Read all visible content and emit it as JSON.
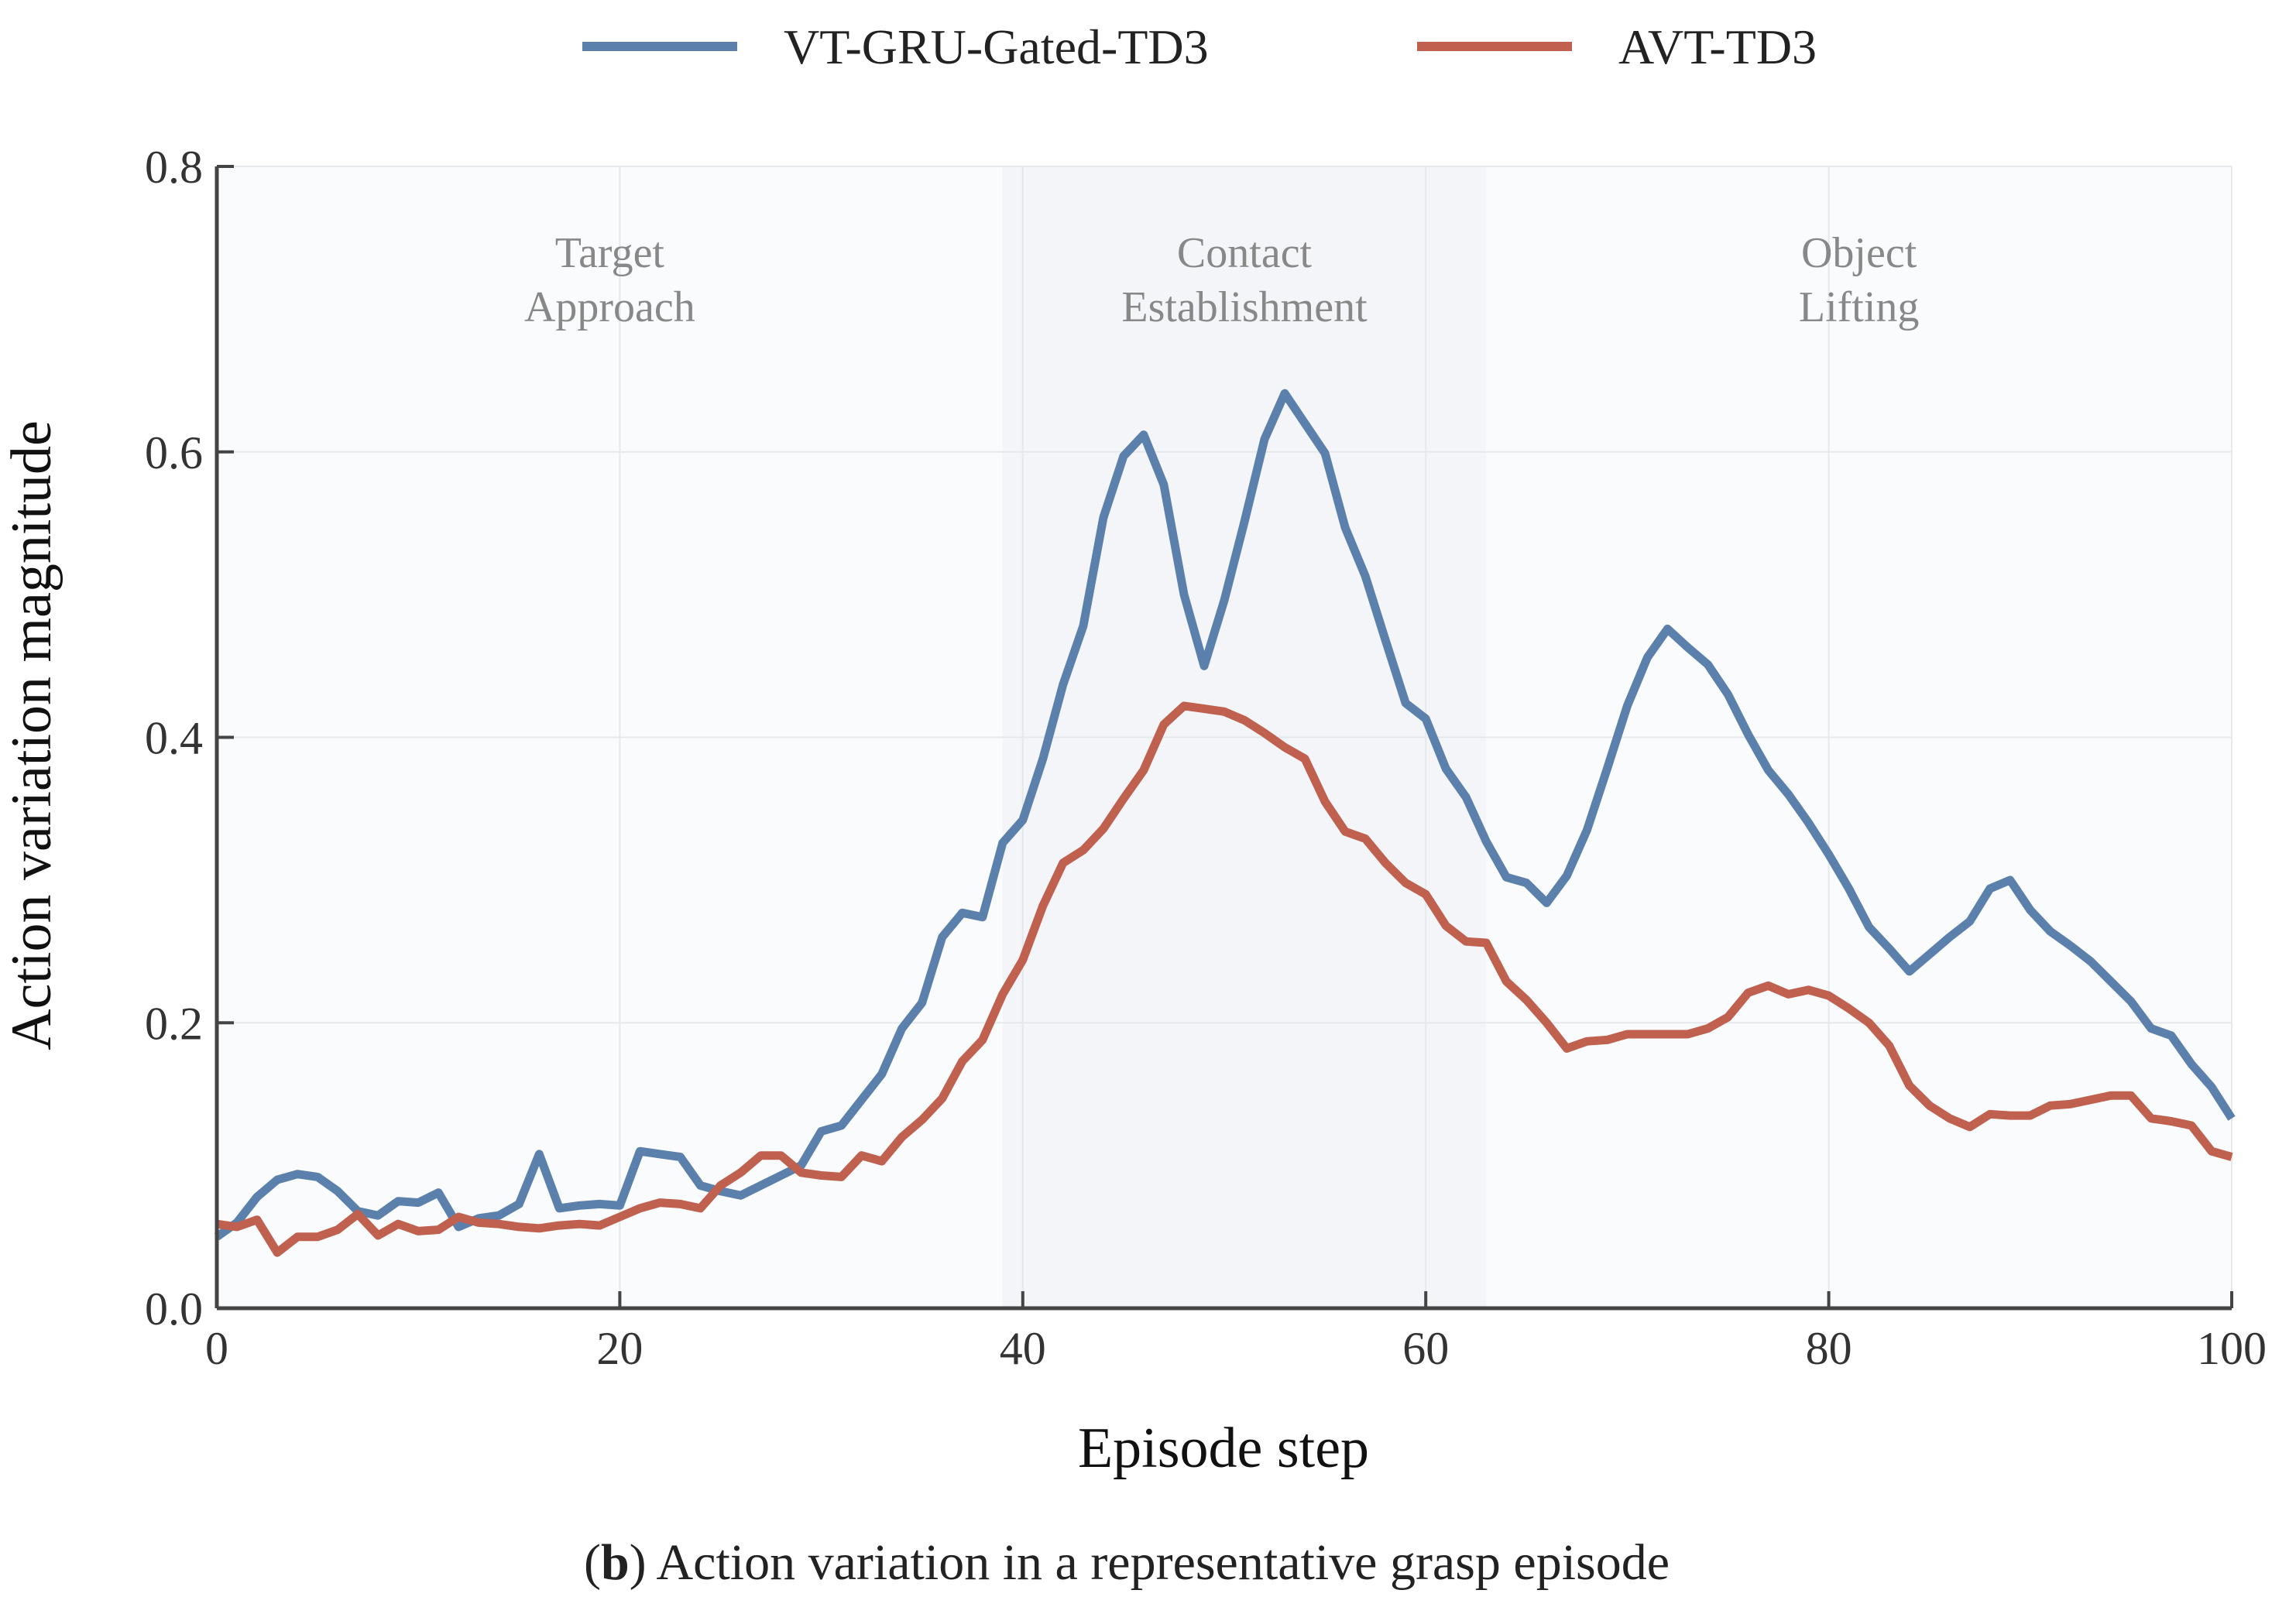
{
  "chart_data": {
    "type": "line",
    "title": "",
    "xlabel": "Episode step",
    "ylabel": "Action variation magnitude",
    "xlim": [
      0,
      100
    ],
    "ylim": [
      0,
      0.8
    ],
    "xticks": [
      0,
      20,
      40,
      60,
      80,
      100
    ],
    "xtick_labels": [
      "0",
      "20",
      "40",
      "60",
      "80",
      "100"
    ],
    "yticks": [
      0,
      0.2,
      0.4,
      0.6,
      0.8
    ],
    "ytick_labels": [
      "0.0",
      "0.2",
      "0.4",
      "0.6",
      "0.8"
    ],
    "grid": true,
    "legend_position": "top-center",
    "phases": [
      {
        "lines": [
          "Target",
          "Approach"
        ],
        "x_start": 0,
        "x_end": 39,
        "label_x": 19.5
      },
      {
        "lines": [
          "Contact",
          "Establishment"
        ],
        "x_start": 39,
        "x_end": 63,
        "label_x": 51
      },
      {
        "lines": [
          "Object",
          "Lifting"
        ],
        "x_start": 63,
        "x_end": 100,
        "label_x": 81.5
      }
    ],
    "x": [
      0,
      1,
      2,
      3,
      4,
      5,
      6,
      7,
      8,
      9,
      10,
      11,
      12,
      13,
      14,
      15,
      16,
      17,
      18,
      19,
      20,
      21,
      22,
      23,
      24,
      25,
      26,
      27,
      28,
      29,
      30,
      31,
      32,
      33,
      34,
      35,
      36,
      37,
      38,
      39,
      40,
      41,
      42,
      43,
      44,
      45,
      46,
      47,
      48,
      49,
      50,
      51,
      52,
      53,
      54,
      55,
      56,
      57,
      58,
      59,
      60,
      61,
      62,
      63,
      64,
      65,
      66,
      67,
      68,
      69,
      70,
      71,
      72,
      73,
      74,
      75,
      76,
      77,
      78,
      79,
      80,
      81,
      82,
      83,
      84,
      85,
      86,
      87,
      88,
      89,
      90,
      91,
      92,
      93,
      94,
      95,
      96,
      97,
      98,
      99,
      100
    ],
    "series": [
      {
        "name": "VT-GRU-Gated-TD3",
        "color": "#5b80ab",
        "values": [
          0.05,
          0.06,
          0.078,
          0.09,
          0.094,
          0.092,
          0.082,
          0.068,
          0.065,
          0.075,
          0.074,
          0.081,
          0.057,
          0.063,
          0.065,
          0.073,
          0.108,
          0.07,
          0.072,
          0.073,
          0.072,
          0.11,
          0.108,
          0.106,
          0.086,
          0.082,
          0.079,
          0.086,
          0.093,
          0.1,
          0.124,
          0.128,
          0.146,
          0.164,
          0.196,
          0.214,
          0.26,
          0.277,
          0.274,
          0.326,
          0.342,
          0.385,
          0.437,
          0.478,
          0.554,
          0.597,
          0.612,
          0.577,
          0.5,
          0.45,
          0.496,
          0.551,
          0.609,
          0.641,
          0.62,
          0.599,
          0.547,
          0.513,
          0.468,
          0.424,
          0.413,
          0.378,
          0.358,
          0.327,
          0.302,
          0.298,
          0.284,
          0.303,
          0.335,
          0.378,
          0.422,
          0.456,
          0.476,
          0.463,
          0.451,
          0.43,
          0.402,
          0.377,
          0.36,
          0.34,
          0.318,
          0.294,
          0.267,
          0.252,
          0.236,
          0.248,
          0.26,
          0.271,
          0.294,
          0.3,
          0.279,
          0.264,
          0.254,
          0.243,
          0.229,
          0.215,
          0.196,
          0.191,
          0.171,
          0.155,
          0.133
        ]
      },
      {
        "name": "AVT-TD3",
        "color": "#c0604f",
        "values": [
          0.059,
          0.057,
          0.062,
          0.039,
          0.05,
          0.05,
          0.055,
          0.066,
          0.051,
          0.059,
          0.054,
          0.055,
          0.064,
          0.06,
          0.059,
          0.057,
          0.056,
          0.058,
          0.059,
          0.058,
          0.064,
          0.07,
          0.074,
          0.073,
          0.07,
          0.086,
          0.095,
          0.107,
          0.107,
          0.095,
          0.093,
          0.092,
          0.107,
          0.103,
          0.12,
          0.132,
          0.147,
          0.173,
          0.188,
          0.22,
          0.244,
          0.282,
          0.312,
          0.321,
          0.336,
          0.357,
          0.377,
          0.409,
          0.422,
          0.42,
          0.418,
          0.412,
          0.403,
          0.393,
          0.385,
          0.355,
          0.334,
          0.329,
          0.312,
          0.298,
          0.29,
          0.268,
          0.257,
          0.256,
          0.229,
          0.216,
          0.2,
          0.182,
          0.187,
          0.188,
          0.192,
          0.192,
          0.192,
          0.192,
          0.196,
          0.204,
          0.221,
          0.226,
          0.22,
          0.223,
          0.219,
          0.21,
          0.2,
          0.184,
          0.156,
          0.142,
          0.133,
          0.127,
          0.136,
          0.135,
          0.135,
          0.142,
          0.143,
          0.146,
          0.149,
          0.149,
          0.133,
          0.131,
          0.128,
          0.11,
          0.106
        ]
      }
    ],
    "caption": {
      "prefix": "(",
      "bold": "b",
      "text": ") Action variation in a representative grasp episode"
    },
    "colors": {
      "axis": "#444444",
      "grid": "#e6e9ec",
      "plot_bg": "#f9fbfc",
      "contact_bg": "#f3f5f8"
    }
  }
}
